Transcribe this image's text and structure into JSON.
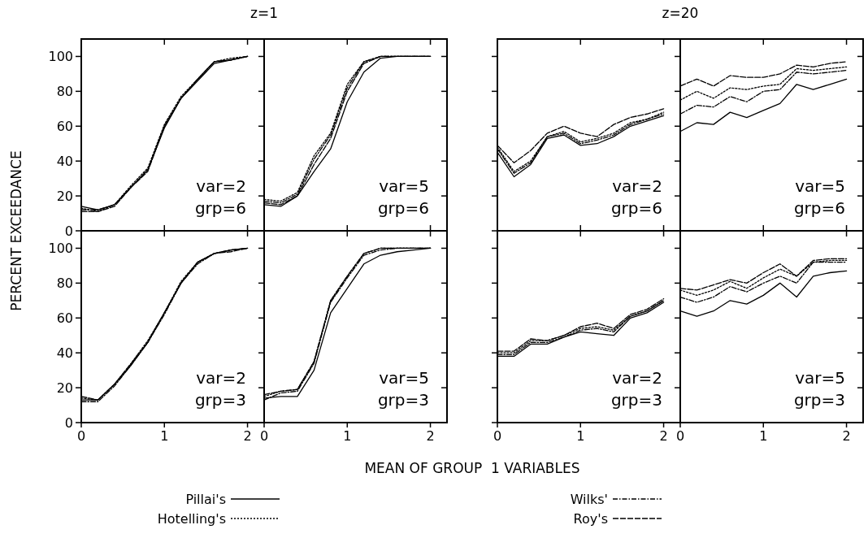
{
  "chart_data": [
    {
      "type": "line",
      "title": "z=1",
      "ylabel": "PERCENT EXCEEDANCE",
      "legend": "bottom",
      "tick_labels": "y",
      "x": [
        0,
        0.2,
        0.4,
        0.6,
        0.8,
        1,
        1.2,
        1.4,
        1.6,
        1.8,
        2
      ],
      "xlim": [
        0,
        2.2
      ],
      "ylim": [
        0,
        110
      ],
      "xticks": [
        0,
        1,
        2
      ],
      "yticks": [
        0,
        20,
        40,
        60,
        80,
        100
      ],
      "annotations": [
        "var=2",
        "grp=6"
      ],
      "series": [
        {
          "name": "Pillai's",
          "color": "#000000",
          "line_style": "solid",
          "values": [
            14,
            12,
            15,
            25,
            35,
            59,
            76,
            86,
            96,
            98,
            100
          ]
        },
        {
          "name": "Hotelling's",
          "color": "#000000",
          "line_style": "dotted",
          "values": [
            13,
            11,
            15,
            26,
            36,
            61,
            77,
            87,
            97,
            99,
            100
          ]
        },
        {
          "name": "Wilks'",
          "color": "#000000",
          "line_style": "dashdot",
          "values": [
            12,
            12,
            15,
            25,
            35,
            60,
            76,
            87,
            97,
            98,
            100
          ]
        },
        {
          "name": "Roy's",
          "color": "#000000",
          "line_style": "dashed",
          "values": [
            11,
            11,
            14,
            25,
            34,
            60,
            76,
            87,
            97,
            98,
            100
          ]
        }
      ]
    },
    {
      "type": "line",
      "tick_labels": false,
      "x": [
        0,
        0.2,
        0.4,
        0.6,
        0.8,
        1,
        1.2,
        1.4,
        1.6,
        1.8,
        2
      ],
      "xlim": [
        0,
        2.2
      ],
      "ylim": [
        0,
        110
      ],
      "xticks": [
        0,
        1,
        2
      ],
      "yticks": [
        0,
        20,
        40,
        60,
        80,
        100
      ],
      "annotations": [
        "var=5",
        "grp=6"
      ],
      "series": [
        {
          "color": "#000000",
          "line_style": "solid",
          "values": [
            15,
            14,
            20,
            34,
            47,
            74,
            91,
            99,
            100,
            100,
            100
          ]
        },
        {
          "color": "#000000",
          "line_style": "dotted",
          "values": [
            18,
            17,
            22,
            43,
            56,
            84,
            97,
            100,
            100,
            100,
            100
          ]
        },
        {
          "color": "#000000",
          "line_style": "dashdot",
          "values": [
            17,
            16,
            21,
            41,
            55,
            82,
            97,
            100,
            100,
            100,
            100
          ]
        },
        {
          "color": "#000000",
          "line_style": "dashed",
          "values": [
            16,
            15,
            20,
            38,
            53,
            80,
            96,
            100,
            100,
            100,
            100
          ]
        }
      ]
    },
    {
      "type": "line",
      "title": "z=20",
      "tick_labels": false,
      "x": [
        0,
        0.2,
        0.4,
        0.6,
        0.8,
        1,
        1.2,
        1.4,
        1.6,
        1.8,
        2
      ],
      "xlim": [
        0,
        2.2
      ],
      "ylim": [
        0,
        110
      ],
      "xticks": [
        0,
        1,
        2
      ],
      "yticks": [
        0,
        20,
        40,
        60,
        80,
        100
      ],
      "annotations": [
        "var=2",
        "grp=6"
      ],
      "series": [
        {
          "color": "#000000",
          "line_style": "solid",
          "values": [
            45,
            31,
            38,
            53,
            55,
            49,
            50,
            54,
            60,
            63,
            66
          ]
        },
        {
          "color": "#000000",
          "line_style": "dotted",
          "values": [
            48,
            34,
            40,
            54,
            57,
            51,
            53,
            56,
            62,
            64,
            68
          ]
        },
        {
          "color": "#000000",
          "line_style": "dashdot",
          "values": [
            47,
            33,
            39,
            54,
            56,
            50,
            52,
            55,
            61,
            64,
            67
          ]
        },
        {
          "color": "#000000",
          "line_style": "dashed",
          "values": [
            49,
            39,
            46,
            56,
            60,
            56,
            54,
            61,
            65,
            67,
            70
          ]
        }
      ]
    },
    {
      "type": "line",
      "tick_labels": false,
      "x": [
        0,
        0.2,
        0.4,
        0.6,
        0.8,
        1,
        1.2,
        1.4,
        1.6,
        1.8,
        2
      ],
      "xlim": [
        0,
        2.2
      ],
      "ylim": [
        0,
        110
      ],
      "xticks": [
        0,
        1,
        2
      ],
      "yticks": [
        0,
        20,
        40,
        60,
        80,
        100
      ],
      "annotations": [
        "var=5",
        "grp=6"
      ],
      "series": [
        {
          "color": "#000000",
          "line_style": "solid",
          "values": [
            57,
            62,
            61,
            68,
            65,
            69,
            73,
            84,
            81,
            84,
            87
          ]
        },
        {
          "color": "#000000",
          "line_style": "dotted",
          "values": [
            75,
            80,
            76,
            82,
            81,
            83,
            84,
            93,
            92,
            93,
            94
          ]
        },
        {
          "color": "#000000",
          "line_style": "dashdot",
          "values": [
            67,
            72,
            71,
            77,
            74,
            80,
            81,
            91,
            90,
            91,
            92
          ]
        },
        {
          "color": "#000000",
          "line_style": "dashed",
          "values": [
            83,
            87,
            83,
            89,
            88,
            88,
            90,
            95,
            94,
            96,
            97
          ]
        }
      ]
    },
    {
      "type": "line",
      "x": [
        0,
        0.2,
        0.4,
        0.6,
        0.8,
        1,
        1.2,
        1.4,
        1.6,
        1.8,
        2
      ],
      "xlim": [
        0,
        2.2
      ],
      "ylim": [
        0,
        110
      ],
      "xticks": [
        0,
        1,
        2
      ],
      "yticks": [
        0,
        20,
        40,
        60,
        80,
        100
      ],
      "annotations": [
        "var=2",
        "grp=3"
      ],
      "series": [
        {
          "color": "#000000",
          "line_style": "solid",
          "values": [
            13,
            13,
            22,
            33,
            46,
            63,
            80,
            92,
            97,
            99,
            100
          ]
        },
        {
          "color": "#000000",
          "line_style": "dotted",
          "values": [
            14,
            13,
            22,
            34,
            47,
            63,
            81,
            92,
            97,
            99,
            100
          ]
        },
        {
          "color": "#000000",
          "line_style": "dashdot",
          "values": [
            12,
            12,
            21,
            33,
            46,
            62,
            80,
            91,
            97,
            99,
            100
          ]
        },
        {
          "color": "#000000",
          "line_style": "dashed",
          "values": [
            15,
            13,
            22,
            34,
            46,
            63,
            80,
            92,
            97,
            98,
            100
          ]
        }
      ]
    },
    {
      "type": "line",
      "xlabel": "MEAN OF GROUP  1 VARIABLES",
      "tick_labels": "x",
      "x": [
        0,
        0.2,
        0.4,
        0.6,
        0.8,
        1,
        1.2,
        1.4,
        1.6,
        1.8,
        2
      ],
      "xlim": [
        0,
        2.2
      ],
      "ylim": [
        0,
        110
      ],
      "xticks": [
        0,
        1,
        2
      ],
      "yticks": [
        0,
        20,
        40,
        60,
        80,
        100
      ],
      "annotations": [
        "var=5",
        "grp=3"
      ],
      "series": [
        {
          "color": "#000000",
          "line_style": "solid",
          "values": [
            14,
            15,
            15,
            30,
            63,
            77,
            91,
            96,
            98,
            99,
            100
          ]
        },
        {
          "color": "#000000",
          "line_style": "dotted",
          "values": [
            15,
            18,
            19,
            35,
            70,
            84,
            97,
            100,
            100,
            100,
            100
          ]
        },
        {
          "color": "#000000",
          "line_style": "dashdot",
          "values": [
            13,
            17,
            18,
            34,
            69,
            83,
            96,
            99,
            100,
            100,
            100
          ]
        },
        {
          "color": "#000000",
          "line_style": "dashed",
          "values": [
            16,
            18,
            19,
            35,
            70,
            84,
            97,
            100,
            100,
            100,
            100
          ]
        }
      ]
    },
    {
      "type": "line",
      "tick_labels": "x",
      "x": [
        0,
        0.2,
        0.4,
        0.6,
        0.8,
        1,
        1.2,
        1.4,
        1.6,
        1.8,
        2
      ],
      "xlim": [
        0,
        2.2
      ],
      "ylim": [
        0,
        110
      ],
      "xticks": [
        0,
        1,
        2
      ],
      "yticks": [
        0,
        20,
        40,
        60,
        80,
        100
      ],
      "annotations": [
        "var=2",
        "grp=3"
      ],
      "series": [
        {
          "color": "#000000",
          "line_style": "solid",
          "values": [
            38,
            38,
            45,
            45,
            49,
            52,
            51,
            50,
            60,
            63,
            69
          ]
        },
        {
          "color": "#000000",
          "line_style": "dotted",
          "values": [
            40,
            40,
            47,
            47,
            50,
            54,
            55,
            53,
            61,
            64,
            70
          ]
        },
        {
          "color": "#000000",
          "line_style": "dashdot",
          "values": [
            39,
            39,
            46,
            46,
            49,
            53,
            54,
            52,
            61,
            64,
            70
          ]
        },
        {
          "color": "#000000",
          "line_style": "dashed",
          "values": [
            41,
            41,
            48,
            47,
            50,
            55,
            57,
            54,
            62,
            65,
            71
          ]
        }
      ]
    },
    {
      "type": "line",
      "tick_labels": "x",
      "x": [
        0,
        0.2,
        0.4,
        0.6,
        0.8,
        1,
        1.2,
        1.4,
        1.6,
        1.8,
        2
      ],
      "xlim": [
        0,
        2.2
      ],
      "ylim": [
        0,
        110
      ],
      "xticks": [
        0,
        1,
        2
      ],
      "yticks": [
        0,
        20,
        40,
        60,
        80,
        100
      ],
      "annotations": [
        "var=5",
        "grp=3"
      ],
      "series": [
        {
          "color": "#000000",
          "line_style": "solid",
          "values": [
            64,
            61,
            64,
            70,
            68,
            73,
            80,
            72,
            84,
            86,
            87
          ]
        },
        {
          "color": "#000000",
          "line_style": "dotted",
          "values": [
            76,
            73,
            76,
            81,
            77,
            83,
            88,
            84,
            92,
            93,
            93
          ]
        },
        {
          "color": "#000000",
          "line_style": "dashdot",
          "values": [
            72,
            69,
            72,
            78,
            75,
            80,
            84,
            80,
            92,
            92,
            92
          ]
        },
        {
          "color": "#000000",
          "line_style": "dashed",
          "values": [
            77,
            76,
            79,
            82,
            80,
            86,
            91,
            84,
            93,
            94,
            94
          ]
        }
      ]
    }
  ]
}
